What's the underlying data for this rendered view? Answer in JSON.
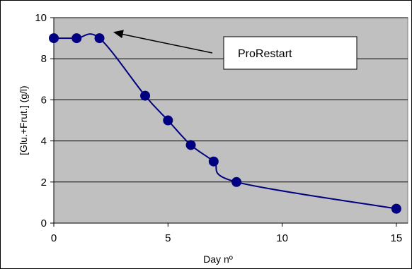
{
  "chart_data": {
    "type": "line",
    "title": "",
    "xlabel": "Day nº",
    "ylabel": "[Glu.+Frut.] (g/l)",
    "xlim": [
      0,
      15.5
    ],
    "ylim": [
      0,
      10
    ],
    "x_ticks": [
      0,
      5,
      10,
      15
    ],
    "y_ticks": [
      0,
      2,
      4,
      6,
      8,
      10
    ],
    "grid": "horizontal",
    "smoothed": true,
    "series": [
      {
        "color": "#000080",
        "marker": "circle",
        "points": [
          {
            "x": 0,
            "y": 9.0
          },
          {
            "x": 1,
            "y": 9.0
          },
          {
            "x": 2,
            "y": 9.0
          },
          {
            "x": 4,
            "y": 6.2
          },
          {
            "x": 5,
            "y": 5.0
          },
          {
            "x": 6,
            "y": 3.8
          },
          {
            "x": 7,
            "y": 3.0
          },
          {
            "x": 8,
            "y": 2.0
          },
          {
            "x": 15,
            "y": 0.7
          }
        ]
      }
    ],
    "annotations": [
      {
        "text": "ProRestart",
        "points_to": {
          "x": 2.6,
          "y": 9.3
        }
      }
    ],
    "colors": {
      "plot_background": "#c0c0c0",
      "gridline": "#000000",
      "series": "#000080",
      "page": "#ffffff"
    }
  }
}
